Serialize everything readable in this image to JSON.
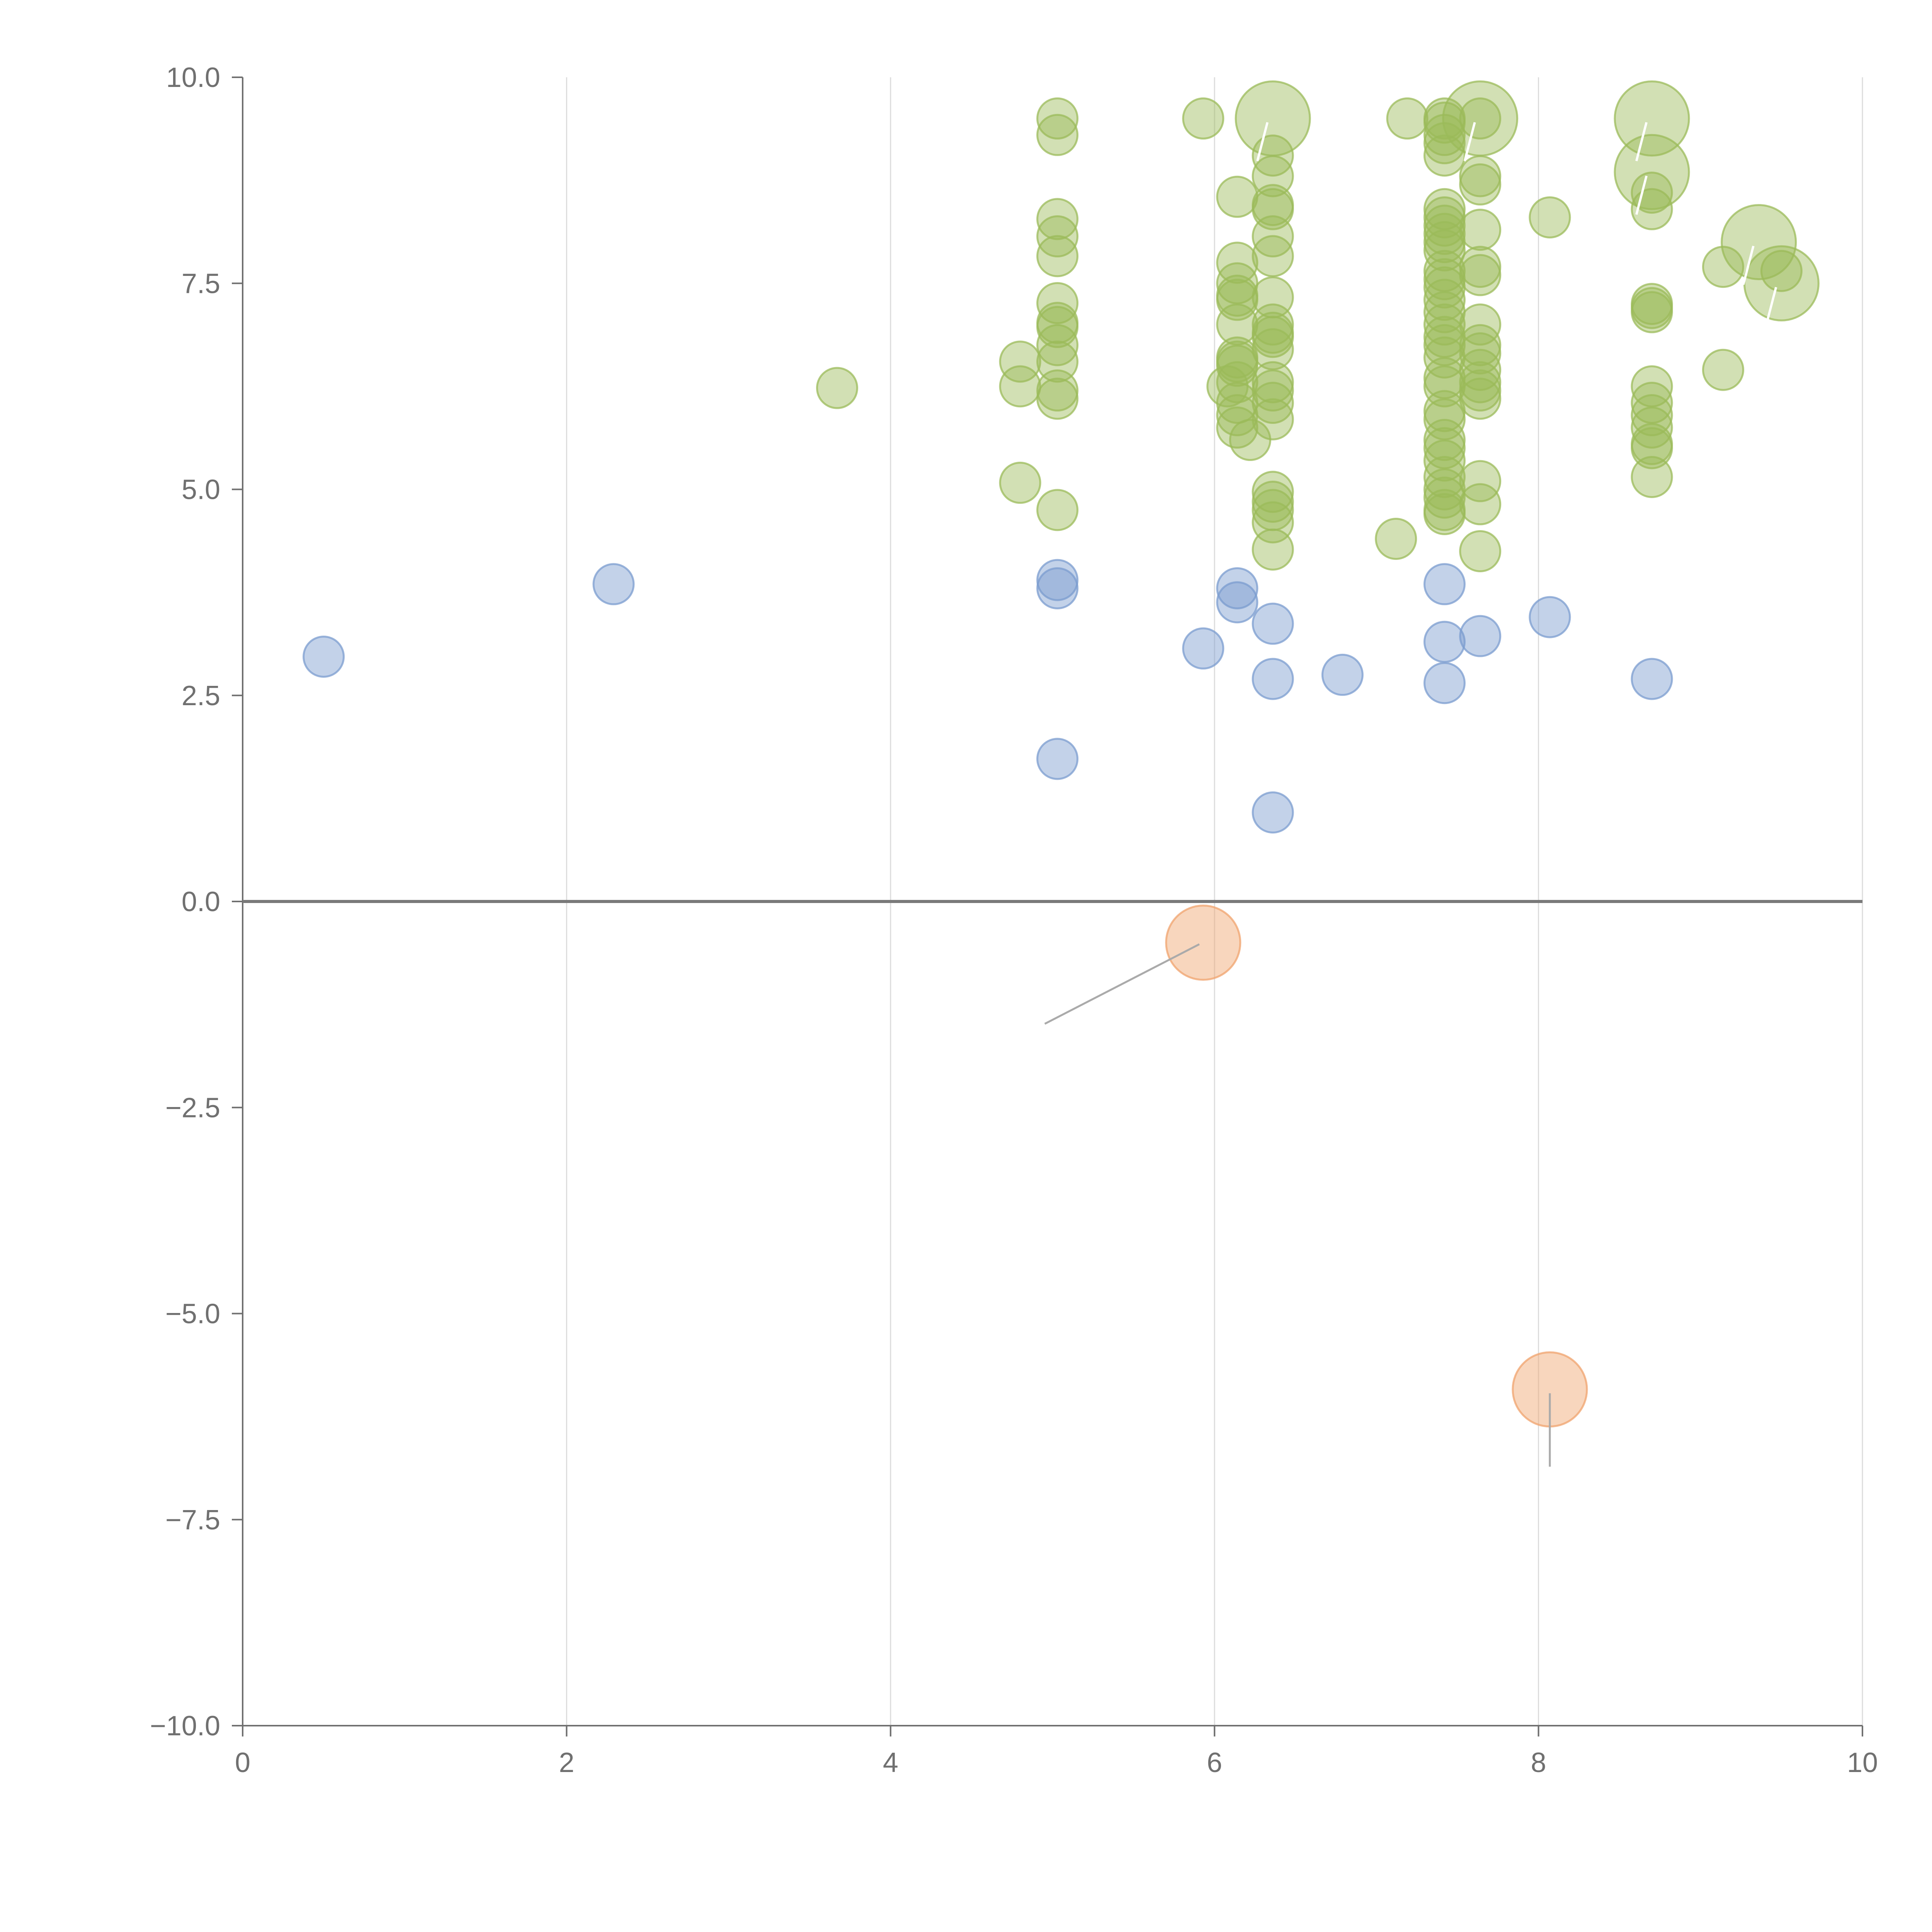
{
  "chart_data": {
    "type": "scatter",
    "title": "",
    "xlabel": "",
    "ylabel": "",
    "xlim": [
      0,
      10
    ],
    "ylim": [
      -10,
      10
    ],
    "x_ticks": [
      0,
      2,
      4,
      6,
      8,
      10
    ],
    "y_ticks": [
      -10,
      -7.5,
      -5,
      -2.5,
      0,
      2.5,
      5,
      7.5,
      10
    ],
    "x_tick_labels": [
      "0",
      "2",
      "4",
      "6",
      "8",
      "10"
    ],
    "y_tick_labels": [
      "−10.0",
      "−7.5",
      "−5.0",
      "−2.5",
      "0.0",
      "2.5",
      "5.0",
      "7.5",
      "10.0"
    ],
    "grid": "vertical",
    "zero_line": true,
    "legend": "none",
    "series": [
      {
        "name": "green",
        "color": "#9bbb59",
        "points": [
          [
            3.67,
            6.23
          ],
          [
            4.8,
            6.55
          ],
          [
            4.8,
            6.25
          ],
          [
            4.8,
            5.08
          ],
          [
            5.03,
            9.5
          ],
          [
            5.03,
            9.3
          ],
          [
            5.03,
            8.28
          ],
          [
            5.03,
            8.07
          ],
          [
            5.03,
            7.83
          ],
          [
            5.03,
            7.26
          ],
          [
            5.03,
            7.02
          ],
          [
            5.03,
            6.97
          ],
          [
            5.03,
            6.75
          ],
          [
            5.03,
            6.55
          ],
          [
            5.03,
            6.2
          ],
          [
            5.03,
            6.1
          ],
          [
            5.03,
            4.75
          ],
          [
            5.93,
            9.5
          ],
          [
            6.14,
            8.55
          ],
          [
            6.14,
            7.75
          ],
          [
            6.14,
            7.5
          ],
          [
            6.14,
            7.35
          ],
          [
            6.14,
            7.3
          ],
          [
            6.14,
            7.0
          ],
          [
            6.14,
            6.6
          ],
          [
            6.14,
            6.55
          ],
          [
            6.14,
            6.5
          ],
          [
            6.14,
            6.3
          ],
          [
            6.14,
            6.05
          ],
          [
            6.14,
            5.9
          ],
          [
            6.14,
            5.75
          ],
          [
            6.08,
            6.25
          ],
          [
            6.22,
            5.6
          ],
          [
            6.36,
            9.05
          ],
          [
            6.36,
            8.8
          ],
          [
            6.36,
            8.45
          ],
          [
            6.36,
            8.4
          ],
          [
            6.36,
            8.07
          ],
          [
            6.36,
            7.83
          ],
          [
            6.36,
            7.33
          ],
          [
            6.36,
            7.0
          ],
          [
            6.36,
            6.9
          ],
          [
            6.36,
            6.85
          ],
          [
            6.36,
            6.7
          ],
          [
            6.36,
            6.3
          ],
          [
            6.36,
            6.2
          ],
          [
            6.36,
            6.05
          ],
          [
            6.36,
            5.85
          ],
          [
            6.36,
            4.97
          ],
          [
            6.36,
            4.85
          ],
          [
            6.36,
            4.75
          ],
          [
            6.36,
            4.6
          ],
          [
            6.36,
            4.27
          ],
          [
            7.12,
            4.4
          ],
          [
            7.19,
            9.5
          ],
          [
            7.42,
            9.5
          ],
          [
            7.42,
            9.45
          ],
          [
            7.42,
            9.3
          ],
          [
            7.42,
            9.2
          ],
          [
            7.42,
            9.05
          ],
          [
            7.42,
            8.4
          ],
          [
            7.42,
            8.3
          ],
          [
            7.42,
            8.2
          ],
          [
            7.42,
            8.1
          ],
          [
            7.42,
            8.0
          ],
          [
            7.42,
            7.9
          ],
          [
            7.42,
            7.65
          ],
          [
            7.42,
            7.55
          ],
          [
            7.42,
            7.45
          ],
          [
            7.42,
            7.3
          ],
          [
            7.42,
            7.15
          ],
          [
            7.42,
            7.0
          ],
          [
            7.42,
            6.85
          ],
          [
            7.42,
            6.75
          ],
          [
            7.42,
            6.6
          ],
          [
            7.42,
            6.35
          ],
          [
            7.42,
            6.25
          ],
          [
            7.42,
            5.95
          ],
          [
            7.42,
            5.85
          ],
          [
            7.42,
            5.6
          ],
          [
            7.42,
            5.5
          ],
          [
            7.42,
            5.35
          ],
          [
            7.42,
            5.15
          ],
          [
            7.42,
            5.0
          ],
          [
            7.42,
            4.9
          ],
          [
            7.42,
            4.75
          ],
          [
            7.42,
            4.7
          ],
          [
            7.64,
            9.5
          ],
          [
            7.64,
            8.8
          ],
          [
            7.64,
            8.7
          ],
          [
            7.64,
            8.15
          ],
          [
            7.64,
            7.7
          ],
          [
            7.64,
            7.6
          ],
          [
            7.64,
            7.0
          ],
          [
            7.64,
            6.75
          ],
          [
            7.64,
            6.65
          ],
          [
            7.64,
            6.45
          ],
          [
            7.64,
            6.3
          ],
          [
            7.64,
            6.2
          ],
          [
            7.64,
            6.1
          ],
          [
            7.64,
            5.1
          ],
          [
            7.64,
            4.82
          ],
          [
            7.64,
            4.25
          ],
          [
            8.07,
            8.3
          ],
          [
            8.7,
            8.6
          ],
          [
            8.7,
            8.4
          ],
          [
            8.7,
            7.25
          ],
          [
            8.7,
            7.2
          ],
          [
            8.7,
            7.15
          ],
          [
            8.7,
            6.25
          ],
          [
            8.7,
            6.05
          ],
          [
            8.7,
            5.9
          ],
          [
            8.7,
            5.75
          ],
          [
            8.7,
            5.55
          ],
          [
            8.7,
            5.5
          ],
          [
            8.7,
            5.15
          ],
          [
            9.14,
            7.7
          ],
          [
            9.14,
            6.45
          ],
          [
            9.5,
            7.65
          ]
        ],
        "large_points": [
          [
            6.36,
            9.5
          ],
          [
            7.64,
            9.5
          ],
          [
            8.7,
            9.5
          ],
          [
            8.7,
            8.85
          ],
          [
            9.36,
            8.0
          ],
          [
            9.5,
            7.5
          ]
        ]
      },
      {
        "name": "blue",
        "color": "#7b9ccf",
        "points": [
          [
            0.5,
            2.97
          ],
          [
            2.29,
            3.85
          ],
          [
            5.03,
            3.9
          ],
          [
            5.03,
            3.8
          ],
          [
            5.03,
            1.73
          ],
          [
            5.93,
            3.07
          ],
          [
            6.14,
            3.8
          ],
          [
            6.14,
            3.63
          ],
          [
            6.36,
            3.37
          ],
          [
            6.36,
            2.7
          ],
          [
            6.36,
            1.08
          ],
          [
            6.79,
            2.75
          ],
          [
            7.42,
            3.85
          ],
          [
            7.42,
            3.15
          ],
          [
            7.42,
            2.65
          ],
          [
            7.64,
            3.22
          ],
          [
            8.07,
            3.45
          ],
          [
            8.7,
            2.7
          ]
        ]
      },
      {
        "name": "orange",
        "color": "#f0a36d",
        "large_points": [
          [
            5.93,
            -0.5
          ],
          [
            8.07,
            -5.92
          ]
        ]
      }
    ]
  }
}
